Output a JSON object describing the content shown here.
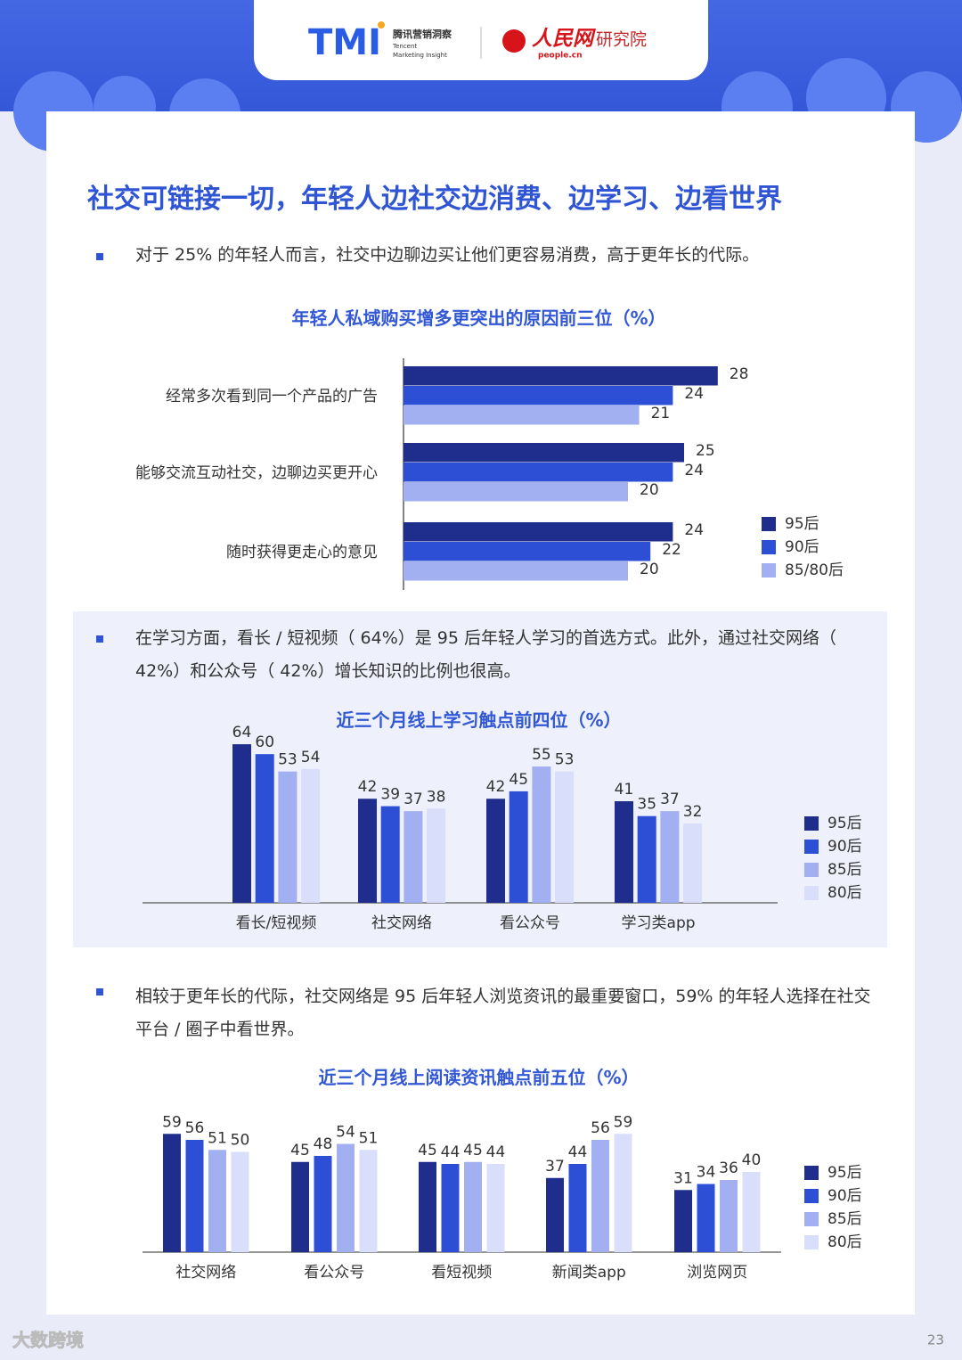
{
  "header": {
    "tmi_logo": "TMI",
    "tmi_name": "腾讯营销洞察",
    "tmi_en": [
      "Tencent",
      "Marketing Insight"
    ],
    "people_logo": "人民网",
    "people_url": "people.cn",
    "people_inst": "研究院"
  },
  "title": "社交可链接一切，年轻人边社交边消费、边学习、边看世界",
  "bullets": [
    "对于 25% 的年轻人而言，社交中边聊边买让他们更容易消费，高于更年长的代际。",
    "在学习方面，看长 / 短视频（ 64%）是 95 后年轻人学习的首选方式。此外，通过社交网络（ 42%）和公众号（ 42%）增长知识的比例也很高。",
    "相较于更年长的代际，社交网络是 95 后年轻人浏览资讯的最重要窗口，59% 的年轻人选择在社交平台 / 圈子中看世界。"
  ],
  "chart_data": [
    {
      "type": "bar",
      "orientation": "horizontal",
      "title": "年轻人私域购买增多更突出的原因前三位（%）",
      "categories": [
        "经常多次看到同一个产品的广告",
        "能够交流互动社交，边聊边买更开心",
        "随时获得更走心的意见"
      ],
      "series": [
        {
          "name": "95后",
          "color": "#1f2e8c",
          "values": [
            28,
            25,
            24
          ]
        },
        {
          "name": "90后",
          "color": "#2c4fd6",
          "values": [
            24,
            24,
            22
          ]
        },
        {
          "name": "85/80后",
          "color": "#a2b0f2",
          "values": [
            21,
            20,
            20
          ]
        }
      ]
    },
    {
      "type": "bar",
      "orientation": "vertical",
      "title": "近三个月线上学习触点前四位（%）",
      "categories": [
        "看长/短视频",
        "社交网络",
        "看公众号",
        "学习类app"
      ],
      "series": [
        {
          "name": "95后",
          "color": "#1f2e8c",
          "values": [
            64,
            42,
            42,
            41
          ]
        },
        {
          "name": "90后",
          "color": "#2c4fd6",
          "values": [
            60,
            39,
            45,
            35
          ]
        },
        {
          "name": "85后",
          "color": "#a2b0f2",
          "values": [
            53,
            37,
            55,
            37
          ]
        },
        {
          "name": "80后",
          "color": "#d9defa",
          "values": [
            54,
            38,
            53,
            32
          ]
        }
      ]
    },
    {
      "type": "bar",
      "orientation": "vertical",
      "title": "近三个月线上阅读资讯触点前五位（%）",
      "categories": [
        "社交网络",
        "看公众号",
        "看短视频",
        "新闻类app",
        "浏览网页"
      ],
      "series": [
        {
          "name": "95后",
          "color": "#1f2e8c",
          "values": [
            59,
            45,
            45,
            37,
            31
          ]
        },
        {
          "name": "90后",
          "color": "#2c4fd6",
          "values": [
            56,
            48,
            44,
            44,
            34
          ]
        },
        {
          "name": "85后",
          "color": "#a2b0f2",
          "values": [
            51,
            54,
            45,
            56,
            36
          ]
        },
        {
          "name": "80后",
          "color": "#d9defa",
          "values": [
            50,
            51,
            44,
            59,
            40
          ]
        }
      ]
    }
  ],
  "footer": {
    "watermark": "大数跨境",
    "page_number": "23"
  }
}
